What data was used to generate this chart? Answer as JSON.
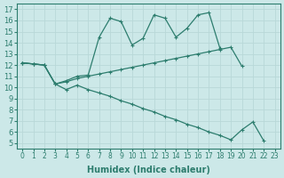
{
  "xlabel": "Humidex (Indice chaleur)",
  "xlim": [
    -0.5,
    23.5
  ],
  "ylim": [
    4.5,
    17.5
  ],
  "xticks": [
    0,
    1,
    2,
    3,
    4,
    5,
    6,
    7,
    8,
    9,
    10,
    11,
    12,
    13,
    14,
    15,
    16,
    17,
    18,
    19,
    20,
    21,
    22,
    23
  ],
  "yticks": [
    5,
    6,
    7,
    8,
    9,
    10,
    11,
    12,
    13,
    14,
    15,
    16,
    17
  ],
  "bg_color": "#cce8e8",
  "line_color": "#2d7d6e",
  "grid_color": "#b8d8d8",
  "line1_x": [
    0,
    1,
    2,
    3,
    4,
    5,
    6,
    7,
    8,
    9,
    10,
    11,
    12,
    13,
    14,
    15,
    16,
    17,
    18
  ],
  "line1_y": [
    12.2,
    12.1,
    12.0,
    10.3,
    10.6,
    11.0,
    11.1,
    14.5,
    16.2,
    15.9,
    13.8,
    14.4,
    16.5,
    16.2,
    14.5,
    15.3,
    16.5,
    16.7,
    13.5
  ],
  "line2_x": [
    0,
    1,
    2,
    3,
    4,
    5,
    6,
    7,
    8,
    9,
    10,
    11,
    12,
    13,
    14,
    15,
    16,
    17,
    18,
    19,
    20
  ],
  "line2_y": [
    12.2,
    12.1,
    12.0,
    10.3,
    10.5,
    10.8,
    11.0,
    11.2,
    11.4,
    11.6,
    11.8,
    12.0,
    12.2,
    12.4,
    12.6,
    12.8,
    13.0,
    13.2,
    13.4,
    13.6,
    11.9
  ],
  "line3_x": [
    0,
    1,
    2,
    3,
    4,
    5,
    6,
    7,
    8,
    9,
    10,
    11,
    12,
    13,
    14,
    15,
    16,
    17,
    18,
    19,
    20,
    21,
    22,
    23
  ],
  "line3_y": [
    12.2,
    12.1,
    12.0,
    10.3,
    9.8,
    10.2,
    9.8,
    9.5,
    9.2,
    8.8,
    8.5,
    8.1,
    7.8,
    7.4,
    7.1,
    6.7,
    6.4,
    6.0,
    5.7,
    5.3,
    6.2,
    6.9,
    5.2,
    null
  ]
}
